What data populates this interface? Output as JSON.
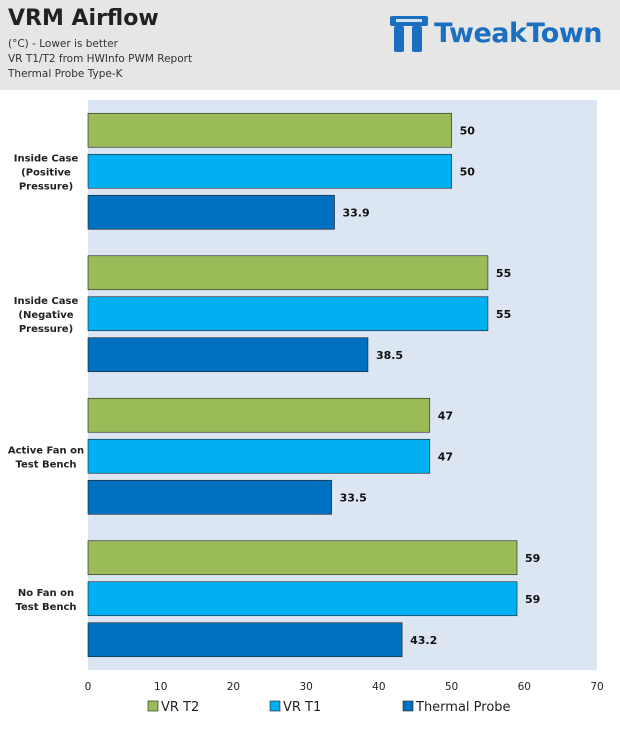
{
  "header": {
    "title": "VRM Airflow",
    "subtitle_lines": [
      "(°C) - Lower is better",
      "VR T1/T2 from HWInfo PWM Report",
      "Thermal Probe Type-K"
    ],
    "logo_text": "TweakTown"
  },
  "colors": {
    "header_bg": "#e6e6e6",
    "plot_bg": "#dce6f2",
    "VR T2": "#9bbb59",
    "VR T1": "#00b0f0",
    "Thermal Probe": "#0070c0",
    "logo": "#1a6fc0"
  },
  "chart_data": {
    "type": "bar",
    "orientation": "horizontal",
    "title": "VRM Airflow",
    "xlabel": "",
    "ylabel": "",
    "xlim": [
      0,
      70
    ],
    "ticks": [
      0,
      10,
      20,
      30,
      40,
      50,
      60,
      70
    ],
    "categories": [
      [
        "Inside Case",
        "(Positive",
        "Pressure)"
      ],
      [
        "Inside Case",
        "(Negative",
        "Pressure)"
      ],
      [
        "Active Fan on",
        "Test Bench"
      ],
      [
        "No Fan on",
        "Test Bench"
      ]
    ],
    "series": [
      {
        "name": "VR T2",
        "values": [
          50,
          55,
          47,
          59
        ]
      },
      {
        "name": "VR T1",
        "values": [
          50,
          55,
          47,
          59
        ]
      },
      {
        "name": "Thermal Probe",
        "values": [
          33.9,
          38.5,
          33.5,
          43.2
        ]
      }
    ],
    "value_labels": [
      [
        "50",
        "55",
        "47",
        "59"
      ],
      [
        "50",
        "55",
        "47",
        "59"
      ],
      [
        "33.9",
        "38.5",
        "33.5",
        "43.2"
      ]
    ],
    "legend": "bottom",
    "grid": false
  }
}
